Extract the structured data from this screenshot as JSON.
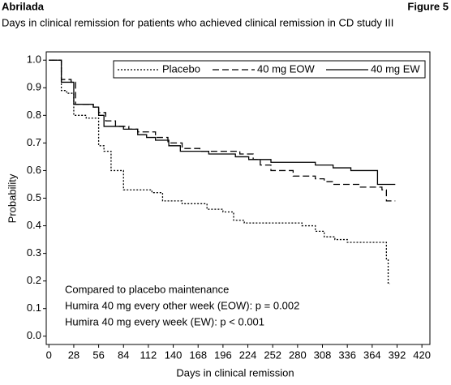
{
  "header": {
    "left": "Abrilada",
    "right": "Figure 5"
  },
  "chart_data": {
    "type": "step",
    "title": "Days in clinical remission for patients who achieved clinical remission in CD study III",
    "xlabel": "Days in clinical remission",
    "ylabel": "Probability",
    "xlim": [
      -3,
      429
    ],
    "ylim": [
      -0.03,
      1.03
    ],
    "xticks": [
      0,
      28,
      56,
      84,
      112,
      140,
      168,
      196,
      224,
      252,
      280,
      308,
      336,
      364,
      392,
      420
    ],
    "yticks": [
      {
        "value": 0,
        "label": "0.0"
      },
      0.1,
      0.2,
      0.3,
      0.4,
      0.5,
      0.6,
      0.7,
      0.8,
      0.9,
      {
        "value": 1,
        "label": "1.0"
      }
    ],
    "legend": "top-right",
    "annotations": [
      "Compared to placebo maintenance",
      "Humira 40 mg every other week (EOW): p = 0.002",
      "Humira 40 mg every week (EW): p < 0.001"
    ],
    "series": [
      {
        "name": "Placebo",
        "color": "#000000",
        "dash": "2,2",
        "x": [
          0,
          14,
          20,
          28,
          42,
          56,
          62,
          70,
          84,
          116,
          128,
          150,
          178,
          196,
          208,
          220,
          285,
          300,
          310,
          322,
          336,
          380,
          382,
          384
        ],
        "values": [
          1.0,
          0.89,
          0.88,
          0.8,
          0.79,
          0.69,
          0.67,
          0.6,
          0.53,
          0.52,
          0.49,
          0.48,
          0.46,
          0.45,
          0.42,
          0.41,
          0.4,
          0.38,
          0.36,
          0.35,
          0.34,
          0.28,
          0.19,
          0.19
        ]
      },
      {
        "name": "40 mg EOW",
        "color": "#000000",
        "dash": "8,4",
        "x": [
          0,
          14,
          25,
          30,
          50,
          56,
          64,
          75,
          90,
          100,
          120,
          134,
          150,
          170,
          215,
          230,
          238,
          250,
          275,
          300,
          310,
          320,
          350,
          375,
          380,
          390
        ],
        "values": [
          1.0,
          0.93,
          0.92,
          0.84,
          0.83,
          0.81,
          0.78,
          0.76,
          0.75,
          0.74,
          0.72,
          0.7,
          0.68,
          0.67,
          0.66,
          0.64,
          0.62,
          0.6,
          0.58,
          0.57,
          0.56,
          0.55,
          0.54,
          0.53,
          0.49,
          0.49
        ]
      },
      {
        "name": "40 mg EW",
        "color": "#000000",
        "dash": "none",
        "x": [
          0,
          14,
          28,
          50,
          56,
          62,
          84,
          100,
          110,
          120,
          135,
          148,
          180,
          210,
          225,
          250,
          300,
          320,
          340,
          370,
          390
        ],
        "values": [
          1.0,
          0.92,
          0.84,
          0.83,
          0.8,
          0.76,
          0.75,
          0.73,
          0.72,
          0.71,
          0.69,
          0.67,
          0.66,
          0.65,
          0.64,
          0.63,
          0.62,
          0.61,
          0.6,
          0.55,
          0.55
        ]
      }
    ]
  }
}
